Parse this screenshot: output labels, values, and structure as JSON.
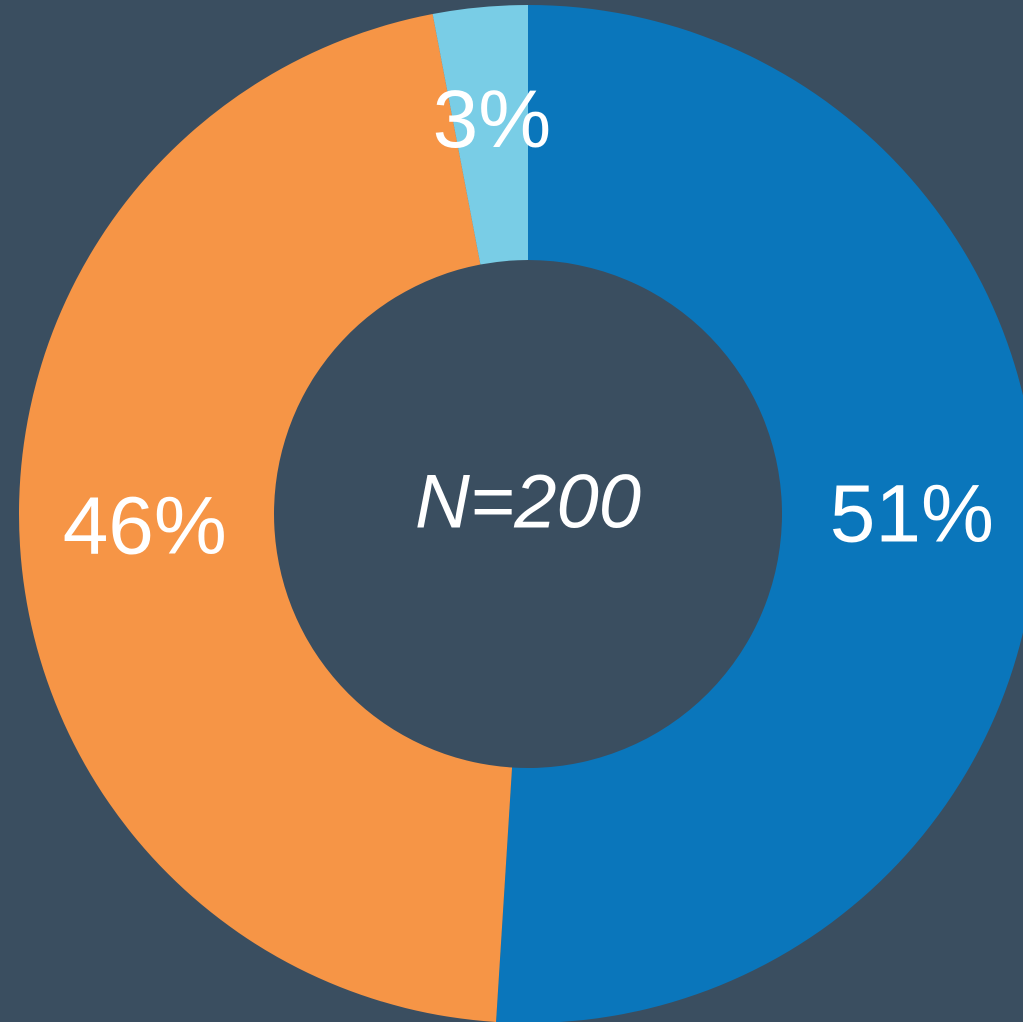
{
  "chart_data": {
    "type": "donut",
    "values": [
      51,
      46,
      3
    ],
    "value_labels": [
      "51%",
      "46%",
      "3%"
    ],
    "colors": [
      "#0a76bb",
      "#f69546",
      "#79cde6"
    ],
    "center_label": "N=200"
  }
}
